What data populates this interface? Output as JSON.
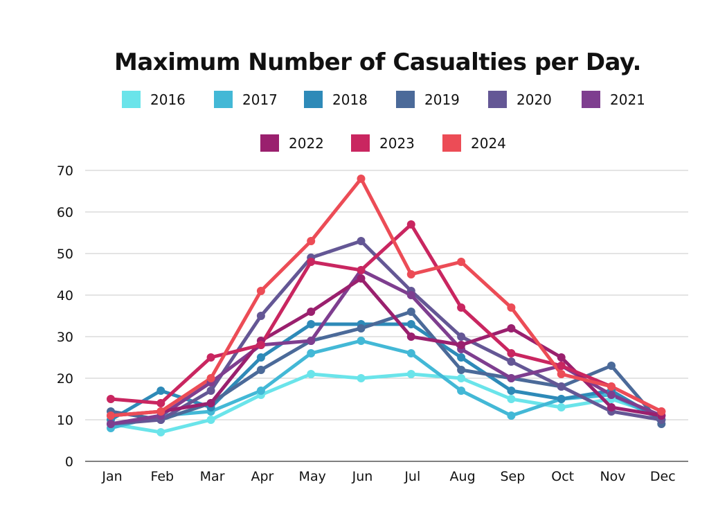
{
  "chart_data": {
    "type": "line",
    "title": "Maximum Number of Casualties per Day.",
    "xlabel": "",
    "ylabel": "",
    "ylim": [
      0,
      70
    ],
    "yticks": [
      "0",
      "10",
      "20",
      "30",
      "40",
      "50",
      "60",
      "70"
    ],
    "categories": [
      "Jan",
      "Feb",
      "Mar",
      "Apr",
      "May",
      "Jun",
      "Jul",
      "Aug",
      "Sep",
      "Oct",
      "Nov",
      "Dec"
    ],
    "grid": true,
    "legend_position": "top",
    "series": [
      {
        "name": "2016",
        "color": "#6ae4ea",
        "values": [
          9,
          7,
          10,
          16,
          21,
          20,
          21,
          20,
          15,
          13,
          15,
          11
        ]
      },
      {
        "name": "2017",
        "color": "#43b8d6",
        "values": [
          8,
          11,
          12,
          17,
          26,
          29,
          26,
          17,
          11,
          15,
          16,
          10
        ]
      },
      {
        "name": "2018",
        "color": "#2e8ab8",
        "values": [
          10,
          17,
          13,
          25,
          33,
          33,
          33,
          25,
          17,
          15,
          17,
          10
        ]
      },
      {
        "name": "2019",
        "color": "#4b6a99",
        "values": [
          12,
          10,
          14,
          22,
          29,
          32,
          36,
          22,
          20,
          18,
          23,
          9
        ]
      },
      {
        "name": "2020",
        "color": "#645795",
        "values": [
          9,
          10,
          17,
          35,
          49,
          53,
          41,
          30,
          24,
          18,
          12,
          10
        ]
      },
      {
        "name": "2021",
        "color": "#7e3e8f",
        "values": [
          9,
          11,
          19,
          28,
          29,
          46,
          40,
          27,
          20,
          23,
          16,
          11
        ]
      },
      {
        "name": "2022",
        "color": "#9a206e",
        "values": [
          11,
          12,
          14,
          29,
          36,
          44,
          30,
          28,
          32,
          25,
          13,
          11
        ]
      },
      {
        "name": "2023",
        "color": "#c92660",
        "values": [
          15,
          14,
          25,
          28,
          48,
          46,
          57,
          37,
          26,
          23,
          18,
          12
        ]
      },
      {
        "name": "2024",
        "color": "#ec4c56",
        "values": [
          11,
          12,
          20,
          41,
          53,
          68,
          45,
          48,
          37,
          21,
          18,
          12
        ]
      }
    ]
  }
}
